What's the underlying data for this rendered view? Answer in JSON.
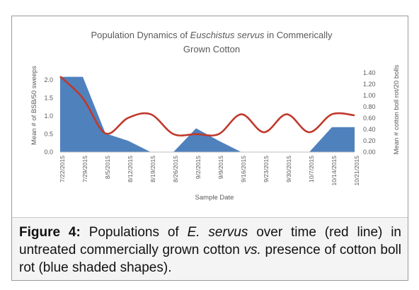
{
  "chart_data": {
    "type": "area+line",
    "title_parts": [
      "Population Dynamics of ",
      "Euschistus servus",
      " in Commerically",
      "Grown Cotton"
    ],
    "xlabel": "Sample Date",
    "ylabel_left": "Mean # of BSB/50 sweeps",
    "ylabel_right": "Mean # cotton boll rot/20 bolls",
    "categories": [
      "7/22/2015",
      "7/29/2015",
      "8/5/2015",
      "8/12/2015",
      "8/19/2015",
      "8/26/2015",
      "9/2/2015",
      "9/9/2015",
      "9/16/2015",
      "9/23/2015",
      "9/30/2015",
      "10/7/2015",
      "10/14/2015",
      "10/21/2015"
    ],
    "yticks_left": [
      "0.0",
      "0.5",
      "1.0",
      "1.5",
      "2.0"
    ],
    "ylim_left": [
      0,
      2.2
    ],
    "yticks_right": [
      "0.00",
      "0.20",
      "0.40",
      "0.60",
      "0.80",
      "1.00",
      "1.20",
      "1.40"
    ],
    "ylim_right": [
      0,
      1.4
    ],
    "series": [
      {
        "kind": "area",
        "axis": "right",
        "color": "#4f81bd",
        "x": [
          "7/22/2015",
          "7/29/2015",
          "8/5/2015",
          "8/12/2015",
          "8/19/2015",
          "8/26/2015",
          "9/2/2015",
          "9/9/2015",
          "9/16/2015",
          "9/23/2015",
          "9/30/2015",
          "10/7/2015",
          "10/14/2015",
          "10/21/2015"
        ],
        "values": [
          1.33,
          1.33,
          0.33,
          0.2,
          0.0,
          0.0,
          0.42,
          0.2,
          0.0,
          0.0,
          0.0,
          0.0,
          0.44,
          0.44
        ]
      },
      {
        "kind": "line",
        "axis": "left",
        "color": "#c0392b",
        "x": [
          "7/22/2015",
          "7/29/2015",
          "8/5/2015",
          "8/12/2015",
          "8/19/2015",
          "8/26/2015",
          "9/2/2015",
          "9/9/2015",
          "9/16/2015",
          "9/23/2015",
          "9/30/2015",
          "10/7/2015",
          "10/14/2015",
          "10/21/2015"
        ],
        "values": [
          2.1,
          1.5,
          0.52,
          0.95,
          1.05,
          0.5,
          0.5,
          0.5,
          1.05,
          0.55,
          1.05,
          0.55,
          1.05,
          1.02
        ]
      }
    ],
    "grid": false,
    "legend": "none"
  },
  "caption": {
    "label": "Figure 4:",
    "text_before_species": " Populations of ",
    "species": "E. servus",
    "text_mid": " over time (red line) in untreated commercially grown cotton ",
    "vs": "vs.",
    "text_end": " presence of cotton boll rot (blue shaded shapes)."
  }
}
